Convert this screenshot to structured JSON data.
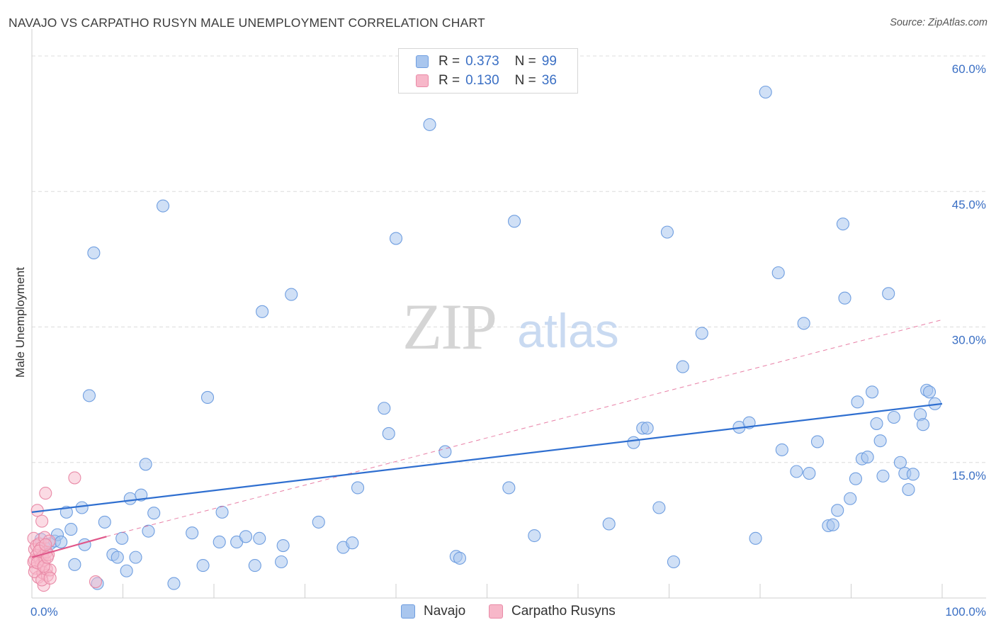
{
  "title": "NAVAJO VS CARPATHO RUSYN MALE UNEMPLOYMENT CORRELATION CHART",
  "source": "Source: ZipAtlas.com",
  "watermark": {
    "zip": "ZIP",
    "atlas": "atlas"
  },
  "legend": {
    "navajo": {
      "r_label": "R =",
      "r_value": "0.373",
      "n_label": "N =",
      "n_value": "99"
    },
    "carpatho": {
      "r_label": "R =",
      "r_value": "0.130",
      "n_label": "N =",
      "n_value": "36"
    }
  },
  "colors": {
    "navajo_fill": "#a9c6ee",
    "navajo_stroke": "#6f9ee0",
    "navajo_line": "#2f6fd0",
    "carpatho_fill": "#f7b7c9",
    "carpatho_stroke": "#e98aa7",
    "carpatho_line": "#e0578a",
    "axis_text": "#3a6fc4",
    "grid": "#dcdcdc"
  },
  "chart_data": {
    "type": "scatter",
    "title": "NAVAJO VS CARPATHO RUSYN MALE UNEMPLOYMENT CORRELATION CHART",
    "xlabel": "",
    "ylabel": "Male Unemployment",
    "xlim": [
      0,
      100
    ],
    "ylim": [
      0,
      63
    ],
    "x_tick_labels": [
      "0.0%",
      "100.0%"
    ],
    "y_ticks": [
      15,
      30,
      45,
      60
    ],
    "y_tick_labels": [
      "15.0%",
      "30.0%",
      "45.0%",
      "60.0%"
    ],
    "legend_bottom": [
      "Navajo",
      "Carpatho Rusyns"
    ],
    "series": [
      {
        "name": "Navajo",
        "points": [
          [
            1.0,
            6.5
          ],
          [
            1.2,
            5.0
          ],
          [
            1.5,
            5.5
          ],
          [
            2.0,
            6.0
          ],
          [
            2.5,
            6.3
          ],
          [
            2.8,
            7.0
          ],
          [
            3.2,
            6.2
          ],
          [
            3.8,
            9.5
          ],
          [
            4.3,
            7.6
          ],
          [
            4.7,
            3.7
          ],
          [
            5.5,
            10.0
          ],
          [
            5.8,
            5.9
          ],
          [
            6.3,
            22.4
          ],
          [
            6.8,
            38.2
          ],
          [
            7.2,
            1.6
          ],
          [
            8.0,
            8.4
          ],
          [
            8.9,
            4.8
          ],
          [
            9.4,
            4.5
          ],
          [
            9.9,
            6.6
          ],
          [
            10.4,
            3.0
          ],
          [
            10.8,
            11.0
          ],
          [
            11.4,
            4.5
          ],
          [
            12.0,
            11.4
          ],
          [
            12.5,
            14.8
          ],
          [
            12.8,
            7.4
          ],
          [
            13.4,
            9.4
          ],
          [
            14.4,
            43.4
          ],
          [
            15.6,
            1.6
          ],
          [
            17.6,
            7.2
          ],
          [
            18.8,
            3.6
          ],
          [
            19.3,
            22.2
          ],
          [
            20.6,
            6.2
          ],
          [
            20.9,
            9.5
          ],
          [
            22.5,
            6.2
          ],
          [
            23.5,
            6.8
          ],
          [
            25.0,
            6.6
          ],
          [
            24.5,
            3.6
          ],
          [
            25.3,
            31.7
          ],
          [
            27.4,
            4.0
          ],
          [
            27.6,
            5.8
          ],
          [
            28.5,
            33.6
          ],
          [
            31.5,
            8.4
          ],
          [
            34.2,
            5.6
          ],
          [
            35.2,
            6.1
          ],
          [
            35.8,
            12.2
          ],
          [
            38.7,
            21.0
          ],
          [
            39.2,
            18.2
          ],
          [
            40.0,
            39.8
          ],
          [
            43.7,
            52.4
          ],
          [
            45.4,
            16.2
          ],
          [
            46.6,
            4.6
          ],
          [
            47.0,
            4.4
          ],
          [
            52.4,
            12.2
          ],
          [
            53.0,
            41.7
          ],
          [
            55.2,
            6.9
          ],
          [
            63.4,
            8.2
          ],
          [
            66.1,
            17.2
          ],
          [
            67.1,
            18.8
          ],
          [
            67.6,
            18.8
          ],
          [
            68.9,
            10.0
          ],
          [
            69.8,
            40.5
          ],
          [
            70.5,
            4.0
          ],
          [
            71.5,
            25.6
          ],
          [
            73.6,
            29.3
          ],
          [
            77.7,
            18.9
          ],
          [
            78.8,
            19.4
          ],
          [
            79.5,
            6.6
          ],
          [
            80.6,
            56.0
          ],
          [
            82.0,
            36.0
          ],
          [
            82.4,
            16.4
          ],
          [
            84.0,
            14.0
          ],
          [
            84.8,
            30.4
          ],
          [
            85.4,
            13.8
          ],
          [
            86.3,
            17.3
          ],
          [
            87.5,
            8.0
          ],
          [
            88.0,
            8.1
          ],
          [
            88.5,
            9.7
          ],
          [
            89.1,
            41.4
          ],
          [
            89.3,
            33.2
          ],
          [
            89.9,
            11.0
          ],
          [
            90.5,
            13.2
          ],
          [
            90.7,
            21.7
          ],
          [
            91.2,
            15.4
          ],
          [
            91.8,
            15.6
          ],
          [
            92.3,
            22.8
          ],
          [
            92.8,
            19.3
          ],
          [
            93.2,
            17.4
          ],
          [
            93.5,
            13.5
          ],
          [
            94.1,
            33.7
          ],
          [
            94.7,
            20.0
          ],
          [
            95.4,
            15.0
          ],
          [
            95.9,
            13.8
          ],
          [
            96.3,
            12.0
          ],
          [
            96.8,
            13.7
          ],
          [
            97.6,
            20.3
          ],
          [
            97.9,
            19.2
          ],
          [
            98.3,
            23.0
          ],
          [
            98.6,
            22.8
          ],
          [
            99.2,
            21.5
          ]
        ],
        "trend": {
          "x": [
            0,
            100
          ],
          "y": [
            9.5,
            21.5
          ]
        }
      },
      {
        "name": "Carpatho Rusyns",
        "points": [
          [
            0.2,
            6.6
          ],
          [
            0.3,
            5.4
          ],
          [
            0.3,
            4.2
          ],
          [
            0.4,
            3.3
          ],
          [
            0.5,
            5.8
          ],
          [
            0.5,
            4.7
          ],
          [
            0.6,
            9.7
          ],
          [
            0.7,
            2.3
          ],
          [
            0.8,
            6.0
          ],
          [
            0.9,
            4.3
          ],
          [
            1.0,
            5.5
          ],
          [
            1.0,
            3.7
          ],
          [
            1.1,
            8.5
          ],
          [
            1.2,
            4.6
          ],
          [
            1.2,
            2.8
          ],
          [
            1.3,
            1.4
          ],
          [
            1.4,
            6.7
          ],
          [
            1.4,
            4.2
          ],
          [
            1.5,
            11.6
          ],
          [
            1.6,
            5.1
          ],
          [
            1.6,
            3.2
          ],
          [
            1.7,
            2.5
          ],
          [
            1.8,
            4.8
          ],
          [
            1.9,
            6.3
          ],
          [
            2.0,
            3.1
          ],
          [
            0.2,
            4.0
          ],
          [
            0.3,
            2.9
          ],
          [
            0.6,
            3.9
          ],
          [
            0.8,
            5.2
          ],
          [
            1.1,
            2.0
          ],
          [
            1.3,
            3.5
          ],
          [
            1.5,
            5.9
          ],
          [
            1.7,
            4.5
          ],
          [
            2.0,
            2.2
          ],
          [
            4.7,
            13.3
          ],
          [
            7.0,
            1.8
          ]
        ],
        "trend_solid": {
          "x": [
            0,
            8.2
          ],
          "y": [
            4.5,
            6.8
          ]
        },
        "trend_dashed": {
          "x": [
            8.2,
            100
          ],
          "y": [
            6.8,
            30.8
          ]
        }
      }
    ]
  }
}
